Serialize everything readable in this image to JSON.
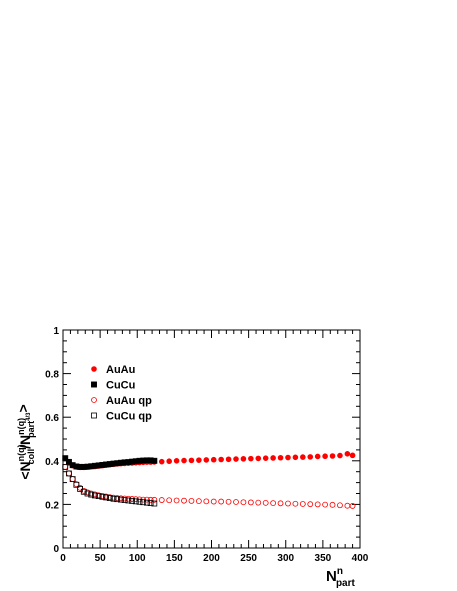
{
  "chart_data": {
    "type": "scatter",
    "xlabel": {
      "main": "N",
      "sup": "n",
      "sub": "part"
    },
    "ylabel": {
      "open": "<N",
      "sup1": "n(q)",
      "sub1": "coll",
      "slash": "/N",
      "sup2": "n(q)",
      "sub2": "part",
      "sub2_sup": "4/3",
      "close": ">"
    },
    "xlim": [
      0,
      400
    ],
    "ylim": [
      0,
      1
    ],
    "xticks": [
      "0",
      "50",
      "100",
      "150",
      "200",
      "250",
      "300",
      "350",
      "400"
    ],
    "yticks": [
      "0",
      "0.2",
      "0.4",
      "0.6",
      "0.8",
      "1"
    ],
    "grid": false,
    "legend_position": "top-left",
    "series": [
      {
        "name": "AuAu",
        "marker": "filled-circle",
        "color": "#ff0000",
        "x": [
          3,
          8,
          13,
          18,
          23,
          28,
          33,
          38,
          43,
          48,
          53,
          58,
          63,
          68,
          73,
          78,
          83,
          88,
          93,
          98,
          103,
          108,
          113,
          118,
          123,
          133,
          143,
          153,
          163,
          173,
          183,
          193,
          203,
          213,
          223,
          233,
          243,
          253,
          263,
          273,
          283,
          293,
          303,
          313,
          323,
          333,
          343,
          353,
          363,
          373,
          383,
          390
        ],
        "y": [
          0.41,
          0.39,
          0.378,
          0.372,
          0.37,
          0.37,
          0.371,
          0.373,
          0.374,
          0.376,
          0.378,
          0.38,
          0.382,
          0.384,
          0.386,
          0.387,
          0.388,
          0.389,
          0.39,
          0.391,
          0.392,
          0.393,
          0.394,
          0.394,
          0.395,
          0.396,
          0.398,
          0.4,
          0.401,
          0.402,
          0.403,
          0.404,
          0.405,
          0.406,
          0.407,
          0.408,
          0.409,
          0.41,
          0.411,
          0.412,
          0.413,
          0.414,
          0.415,
          0.416,
          0.417,
          0.418,
          0.42,
          0.421,
          0.422,
          0.424,
          0.432,
          0.425
        ]
      },
      {
        "name": "CuCu",
        "marker": "filled-square",
        "color": "#000000",
        "x": [
          3,
          8,
          13,
          18,
          23,
          28,
          33,
          38,
          43,
          48,
          53,
          58,
          63,
          68,
          73,
          78,
          83,
          88,
          93,
          98,
          103,
          108,
          113,
          118,
          123
        ],
        "y": [
          0.412,
          0.395,
          0.38,
          0.374,
          0.372,
          0.372,
          0.373,
          0.375,
          0.377,
          0.379,
          0.381,
          0.383,
          0.385,
          0.387,
          0.389,
          0.391,
          0.393,
          0.394,
          0.396,
          0.398,
          0.4,
          0.401,
          0.402,
          0.402,
          0.4
        ]
      },
      {
        "name": "AuAu qp",
        "marker": "open-circle",
        "color": "#ff0000",
        "x": [
          3,
          8,
          13,
          18,
          23,
          28,
          33,
          38,
          43,
          48,
          53,
          58,
          63,
          68,
          73,
          78,
          83,
          88,
          93,
          98,
          103,
          108,
          113,
          118,
          123,
          133,
          143,
          153,
          163,
          173,
          183,
          193,
          203,
          213,
          223,
          233,
          243,
          253,
          263,
          273,
          283,
          293,
          303,
          313,
          323,
          333,
          343,
          353,
          363,
          373,
          383,
          390
        ],
        "y": [
          0.372,
          0.342,
          0.316,
          0.293,
          0.276,
          0.262,
          0.255,
          0.25,
          0.246,
          0.242,
          0.239,
          0.236,
          0.233,
          0.231,
          0.229,
          0.228,
          0.227,
          0.226,
          0.225,
          0.224,
          0.223,
          0.222,
          0.222,
          0.221,
          0.221,
          0.22,
          0.219,
          0.218,
          0.217,
          0.216,
          0.215,
          0.214,
          0.213,
          0.213,
          0.212,
          0.211,
          0.21,
          0.209,
          0.208,
          0.207,
          0.206,
          0.205,
          0.204,
          0.203,
          0.202,
          0.201,
          0.2,
          0.199,
          0.198,
          0.196,
          0.194,
          0.193
        ]
      },
      {
        "name": "CuCu qp",
        "marker": "open-square",
        "color": "#000000",
        "x": [
          3,
          8,
          13,
          18,
          23,
          28,
          33,
          38,
          43,
          48,
          53,
          58,
          63,
          68,
          73,
          78,
          83,
          88,
          93,
          98,
          103,
          108,
          113,
          118,
          123
        ],
        "y": [
          0.372,
          0.342,
          0.316,
          0.29,
          0.271,
          0.258,
          0.25,
          0.245,
          0.241,
          0.238,
          0.235,
          0.232,
          0.229,
          0.226,
          0.224,
          0.222,
          0.22,
          0.218,
          0.216,
          0.214,
          0.212,
          0.21,
          0.208,
          0.206,
          0.204
        ]
      }
    ]
  }
}
